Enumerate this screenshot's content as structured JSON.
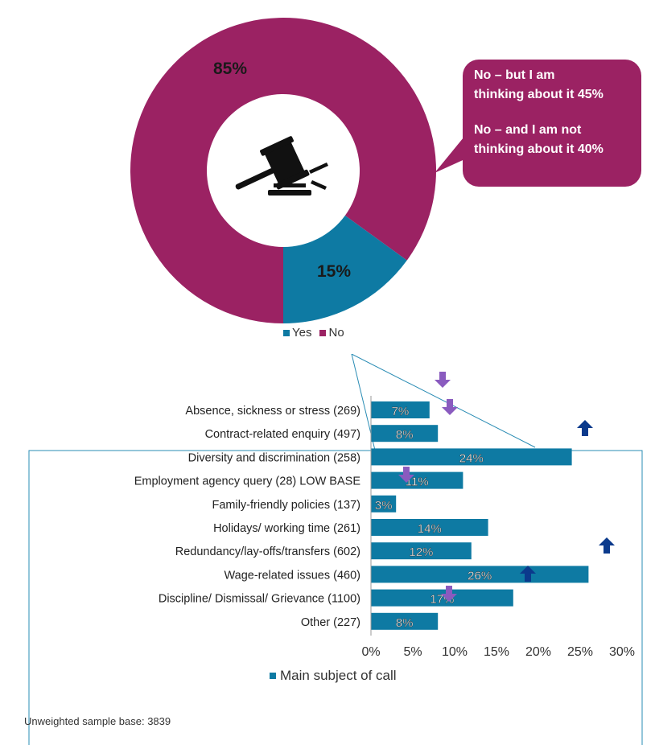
{
  "colors": {
    "yes": "#0e7aa3",
    "no": "#9b2263",
    "callout": "#9b2263",
    "arrow_up": "#0b3a8c",
    "arrow_down": "#8a5bbf",
    "frame": "#2a8cb4"
  },
  "icons": [
    "gavel-icon"
  ],
  "callout": {
    "line1": "No – but I am\nthinking about it 45%",
    "line2": "No – and I am not\nthinking about it 40%"
  },
  "chart_data": [
    {
      "type": "pie",
      "labels": [
        "Yes",
        "No"
      ],
      "values": [
        15,
        85
      ],
      "value_labels": [
        "15%",
        "85%"
      ],
      "legend": "bottom"
    },
    {
      "type": "bar",
      "orientation": "horizontal",
      "categories": [
        "Absence, sickness or stress (269)",
        "Contract-related enquiry (497)",
        "Diversity and discrimination (258)",
        "Employment agency query (28) LOW BASE",
        "Family-friendly policies (137)",
        "Holidays/ working time (261)",
        "Redundancy/lay-offs/transfers (602)",
        "Wage-related issues (460)",
        "Discipline/ Dismissal/ Grievance (1100)",
        "Other (227)"
      ],
      "series": [
        {
          "name": "Main subject of call",
          "values": [
            7,
            8,
            24,
            11,
            3,
            14,
            12,
            26,
            17,
            8
          ]
        }
      ],
      "data_labels": [
        "7%",
        "8%",
        "24%",
        "11%",
        "3%",
        "14%",
        "12%",
        "26%",
        "17%",
        "8%"
      ],
      "xlim": [
        0,
        30
      ],
      "x_ticks": [
        "0%",
        "5%",
        "10%",
        "15%",
        "20%",
        "25%",
        "30%"
      ],
      "legend": "bottom"
    }
  ],
  "footer": "Unweighted sample base: 3839"
}
